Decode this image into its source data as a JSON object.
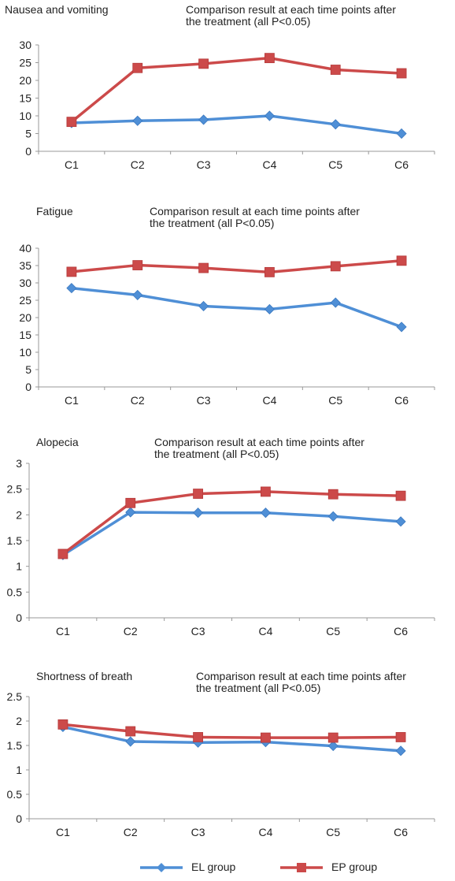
{
  "chart_data": [
    {
      "type": "line",
      "title": "Nausea and vomiting",
      "note": [
        "Comparison result at each time points after",
        "the treatment (all P<0.05)"
      ],
      "categories": [
        "C1",
        "C2",
        "C3",
        "C4",
        "C5",
        "C6"
      ],
      "ylim": [
        0,
        30
      ],
      "yticks": [
        "0",
        "5",
        "10",
        "15",
        "20",
        "25",
        "30"
      ],
      "series": [
        {
          "name": "EL group",
          "values": [
            8.0,
            8.6,
            8.9,
            10.0,
            7.6,
            5.0
          ]
        },
        {
          "name": "EP group",
          "values": [
            8.3,
            23.5,
            24.7,
            26.3,
            23.0,
            22.0
          ]
        }
      ]
    },
    {
      "type": "line",
      "title": "Fatigue",
      "note": [
        "Comparison result at each time points after",
        "the treatment (all P<0.05)"
      ],
      "categories": [
        "C1",
        "C2",
        "C3",
        "C4",
        "C5",
        "C6"
      ],
      "ylim": [
        0,
        40
      ],
      "yticks": [
        "0",
        "5",
        "10",
        "15",
        "20",
        "25",
        "30",
        "35",
        "40"
      ],
      "series": [
        {
          "name": "EL group",
          "values": [
            28.5,
            26.5,
            23.3,
            22.4,
            24.3,
            17.3
          ]
        },
        {
          "name": "EP group",
          "values": [
            33.2,
            35.1,
            34.3,
            33.1,
            34.8,
            36.4
          ]
        }
      ]
    },
    {
      "type": "line",
      "title": "Alopecia",
      "note": [
        "Comparison result at each time points after",
        "the treatment (all P<0.05)"
      ],
      "categories": [
        "C1",
        "C2",
        "C3",
        "C4",
        "C5",
        "C6"
      ],
      "ylim": [
        0,
        3
      ],
      "yticks": [
        "0",
        "0.5",
        "1",
        "1.5",
        "2",
        "2.5",
        "3"
      ],
      "series": [
        {
          "name": "EL group",
          "values": [
            1.22,
            2.05,
            2.04,
            2.04,
            1.97,
            1.87
          ]
        },
        {
          "name": "EP group",
          "values": [
            1.24,
            2.23,
            2.41,
            2.45,
            2.4,
            2.37
          ]
        }
      ]
    },
    {
      "type": "line",
      "title": "Shortness of breath",
      "note": [
        "Comparison result at each time points after",
        "the treatment (all P<0.05)"
      ],
      "categories": [
        "C1",
        "C2",
        "C3",
        "C4",
        "C5",
        "C6"
      ],
      "ylim": [
        0,
        2.5
      ],
      "yticks": [
        "0",
        "0.5",
        "1",
        "1.5",
        "2",
        "2.5"
      ],
      "series": [
        {
          "name": "EL group",
          "values": [
            1.88,
            1.58,
            1.56,
            1.57,
            1.49,
            1.39
          ]
        },
        {
          "name": "EP group",
          "values": [
            1.93,
            1.79,
            1.67,
            1.66,
            1.66,
            1.67
          ]
        }
      ]
    }
  ],
  "legend": [
    {
      "name": "EL group",
      "marker": "diamond",
      "color": "#4f8fd6"
    },
    {
      "name": "EP group",
      "marker": "square",
      "color": "#cc4a4a"
    }
  ],
  "legend_placement": "bottom-center",
  "grid": false
}
